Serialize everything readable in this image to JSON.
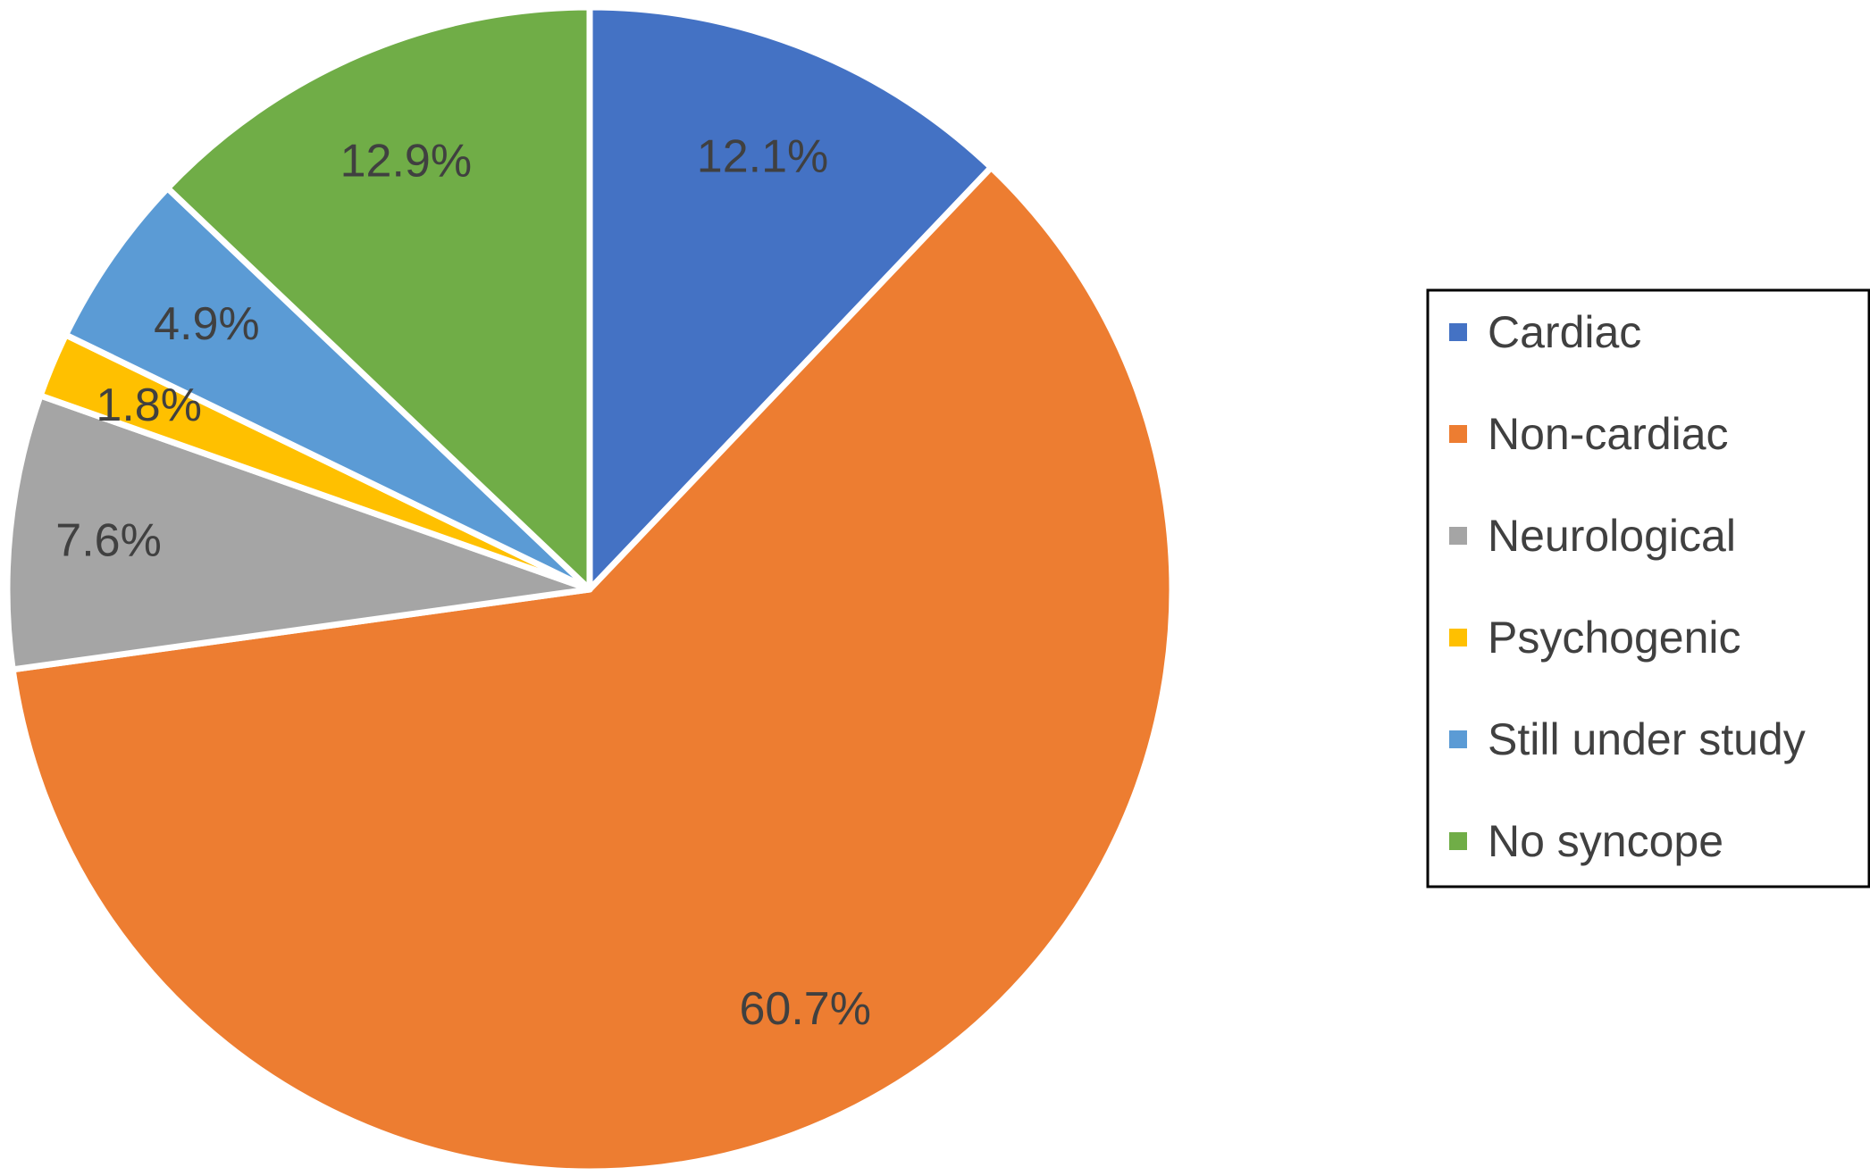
{
  "chart_data": {
    "type": "pie",
    "title": "",
    "start_angle_deg": 0,
    "direction": "clockwise",
    "legend_position": "right",
    "slices": [
      {
        "name": "Cardiac",
        "value": 12.1,
        "label": "12.1%",
        "color": "#4472C4"
      },
      {
        "name": "Non-cardiac",
        "value": 60.7,
        "label": "60.7%",
        "color": "#ED7D31"
      },
      {
        "name": "Neurological",
        "value": 7.6,
        "label": "7.6%",
        "color": "#A5A5A5"
      },
      {
        "name": "Psychogenic",
        "value": 1.8,
        "label": "1.8%",
        "color": "#FFC000"
      },
      {
        "name": "Still under study",
        "value": 4.9,
        "label": "4.9%",
        "color": "#5B9BD5"
      },
      {
        "name": "No syncope",
        "value": 12.9,
        "label": "12.9%",
        "color": "#70AD47"
      }
    ]
  }
}
